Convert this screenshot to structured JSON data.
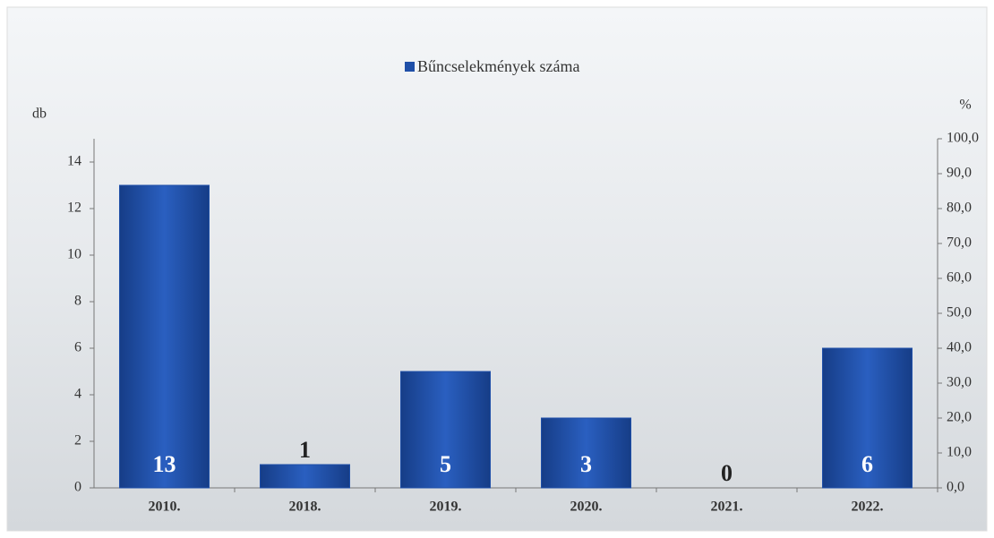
{
  "chart_data": {
    "type": "bar",
    "categories": [
      "2010.",
      "2018.",
      "2019.",
      "2020.",
      "2021.",
      "2022."
    ],
    "series": [
      {
        "name": "Bűncselekmények száma",
        "color": "#1f4fa8",
        "values": [
          13,
          1,
          5,
          3,
          0,
          6
        ]
      }
    ],
    "y_label": "db",
    "y2_label": "%",
    "ylim": [
      0,
      15
    ],
    "yticks": [
      0,
      2,
      4,
      6,
      8,
      10,
      12,
      14
    ],
    "y2lim": [
      0,
      100
    ],
    "y2ticks": [
      {
        "value": 0,
        "label": "0,0"
      },
      {
        "value": 10,
        "label": "10,0"
      },
      {
        "value": 20,
        "label": "20,0"
      },
      {
        "value": 30,
        "label": "30,0"
      },
      {
        "value": 40,
        "label": "40,0"
      },
      {
        "value": 50,
        "label": "50,0"
      },
      {
        "value": 60,
        "label": "60,0"
      },
      {
        "value": 70,
        "label": "70,0"
      },
      {
        "value": 80,
        "label": "80,0"
      },
      {
        "value": 90,
        "label": "90,0"
      },
      {
        "value": 100,
        "label": "100,0"
      }
    ]
  }
}
